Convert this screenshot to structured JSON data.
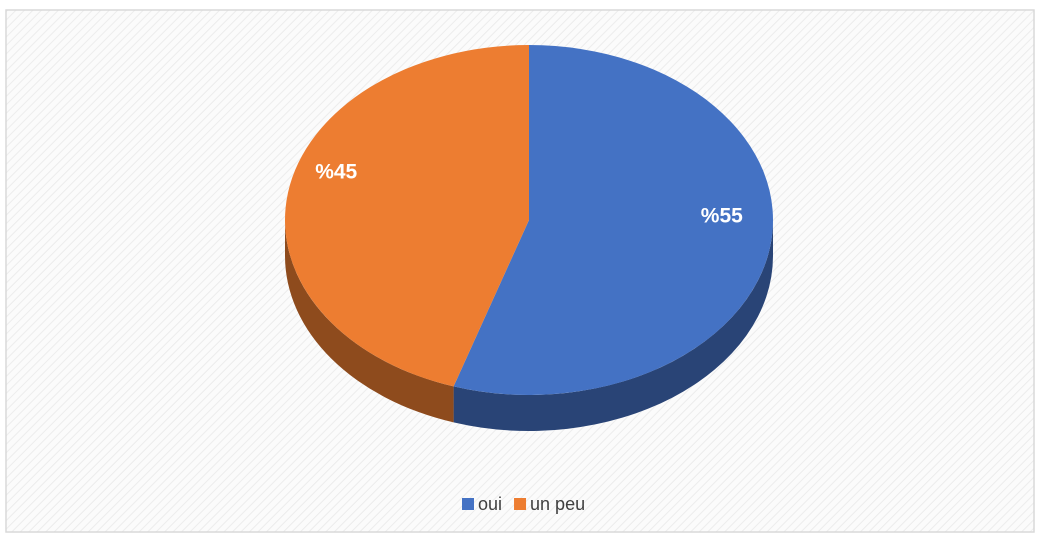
{
  "chart_data": {
    "type": "pie",
    "categories": [
      "oui",
      "un peu"
    ],
    "series": [
      {
        "values": [
          55,
          45
        ],
        "value_labels": [
          "%55",
          "%45"
        ],
        "colors": [
          "#4472c4",
          "#ed7d31"
        ]
      }
    ],
    "legend": "bottom"
  }
}
